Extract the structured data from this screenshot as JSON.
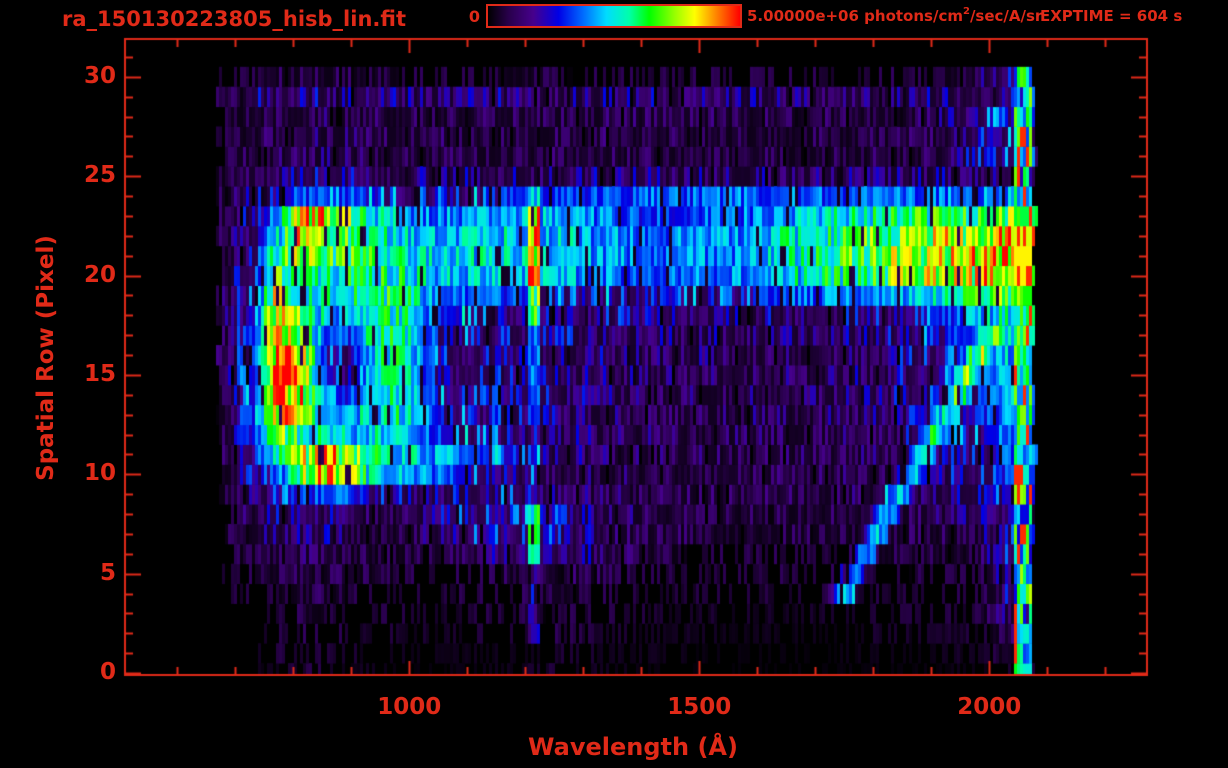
{
  "figure": {
    "title": "ra_150130223805_hisb_lin.fit",
    "exptime": "EXPTIME = 604 s",
    "accent_color": "#e02a18",
    "colorbar": {
      "min_label": "0",
      "max_label": "5.00000e+06",
      "units_prefix": " photons/cm",
      "units_exponent": "2",
      "units_suffix": "/sec/A/sr"
    }
  },
  "chart_data": {
    "type": "heatmap",
    "title": "ra_150130223805_hisb_lin.fit",
    "xlabel": "Wavelength (Å)",
    "ylabel": "Spatial Row (Pixel)",
    "xlim": [
      510,
      2272
    ],
    "ylim": [
      -0.1,
      31.9
    ],
    "x_ticks": [
      1000,
      1500,
      2000
    ],
    "x_minor_step": 100,
    "x_minor_range": [
      600,
      2200
    ],
    "y_ticks": [
      0,
      5,
      10,
      15,
      20,
      25,
      30
    ],
    "y_minor_step": 1,
    "y_minor_range": [
      0,
      31
    ],
    "exposure_seconds": 604,
    "colorbar_range": [
      0,
      5000000
    ],
    "value_unit": "photons/cm^2/sec/A/sr",
    "value_scale": 1000000,
    "data_extent": {
      "wavelength": [
        668,
        2075
      ],
      "rows": [
        0,
        30
      ]
    },
    "colormap_stops": [
      [
        0.0,
        "#000000"
      ],
      [
        0.08,
        "#28004a"
      ],
      [
        0.18,
        "#46008c"
      ],
      [
        0.28,
        "#0000e6"
      ],
      [
        0.38,
        "#006eff"
      ],
      [
        0.47,
        "#00dcff"
      ],
      [
        0.56,
        "#00ffaa"
      ],
      [
        0.64,
        "#00ff00"
      ],
      [
        0.74,
        "#96ff00"
      ],
      [
        0.82,
        "#ffff00"
      ],
      [
        0.9,
        "#ff8c00"
      ],
      [
        1.0,
        "#ff0000"
      ]
    ],
    "wavelength_bins": [
      680,
      730,
      770,
      810,
      850,
      890,
      930,
      980,
      1050,
      1150,
      1250,
      1400,
      1550,
      1700,
      1800,
      1900,
      1980,
      2040
    ],
    "grid_unit": "1e6 photons/cm^2/sec/A/sr",
    "grid_rows": [
      [
        0.05,
        0.1,
        0.1,
        0.25,
        0.25,
        0.1,
        0.1,
        0.05,
        0.05,
        0.1,
        0.2,
        0.05,
        0.05,
        0.05,
        0.05,
        0.05,
        0.1,
        0.3
      ],
      [
        0.1,
        0.15,
        0.2,
        0.25,
        0.25,
        0.2,
        0.15,
        0.1,
        0.1,
        0.1,
        0.2,
        0.1,
        0.05,
        0.05,
        0.1,
        0.1,
        0.15,
        0.5
      ],
      [
        0.1,
        0.2,
        0.25,
        0.3,
        0.3,
        0.25,
        0.2,
        0.2,
        0.15,
        0.2,
        0.3,
        0.15,
        0.1,
        0.1,
        0.15,
        0.15,
        0.2,
        0.7
      ],
      [
        0.15,
        0.25,
        0.3,
        0.35,
        0.35,
        0.3,
        0.25,
        0.25,
        0.2,
        0.25,
        0.3,
        0.2,
        0.15,
        0.15,
        0.2,
        0.2,
        0.25,
        0.8
      ],
      [
        0.2,
        0.3,
        0.35,
        0.4,
        0.4,
        0.35,
        0.3,
        0.3,
        0.25,
        0.3,
        0.4,
        0.25,
        0.2,
        0.25,
        0.25,
        0.25,
        0.3,
        1.0
      ],
      [
        0.25,
        0.35,
        0.4,
        0.45,
        0.45,
        0.4,
        0.35,
        0.35,
        0.3,
        0.35,
        0.5,
        0.3,
        0.25,
        0.3,
        0.3,
        0.3,
        0.35,
        1.2
      ],
      [
        0.3,
        0.4,
        0.5,
        0.55,
        0.55,
        0.45,
        0.4,
        0.4,
        0.45,
        0.8,
        1.0,
        0.4,
        0.3,
        0.3,
        0.35,
        0.35,
        0.4,
        1.4
      ],
      [
        0.35,
        0.5,
        0.8,
        0.8,
        0.8,
        0.6,
        0.5,
        0.5,
        0.8,
        1.3,
        1.2,
        0.5,
        0.4,
        0.4,
        0.4,
        0.45,
        0.5,
        1.5
      ],
      [
        0.35,
        0.6,
        0.85,
        0.9,
        0.9,
        0.7,
        0.6,
        0.6,
        0.9,
        1.4,
        1.3,
        0.5,
        0.4,
        0.45,
        0.5,
        0.6,
        0.8,
        1.5
      ],
      [
        0.4,
        0.8,
        1.2,
        1.6,
        1.8,
        1.7,
        1.5,
        1.1,
        1.0,
        1.2,
        0.8,
        0.5,
        0.5,
        0.5,
        0.55,
        0.7,
        1.0,
        1.6
      ],
      [
        0.45,
        1.0,
        1.8,
        3.2,
        4.4,
        3.7,
        2.7,
        2.2,
        2.0,
        1.0,
        0.7,
        0.5,
        0.5,
        0.55,
        0.6,
        0.8,
        1.2,
        1.8
      ],
      [
        0.5,
        1.4,
        2.6,
        3.6,
        4.6,
        3.8,
        3.0,
        2.5,
        2.2,
        1.4,
        0.8,
        0.6,
        0.5,
        0.55,
        0.65,
        0.9,
        1.3,
        1.8
      ],
      [
        0.5,
        1.7,
        3.4,
        3.0,
        2.6,
        2.4,
        2.6,
        2.6,
        1.6,
        1.2,
        0.8,
        0.6,
        0.55,
        0.6,
        0.7,
        1.0,
        1.4,
        2.0
      ],
      [
        0.55,
        1.8,
        4.6,
        3.6,
        2.4,
        2.2,
        2.5,
        2.7,
        1.5,
        1.1,
        0.8,
        0.65,
        0.6,
        0.6,
        0.75,
        1.0,
        1.5,
        2.2
      ],
      [
        0.55,
        1.7,
        5.0,
        4.4,
        2.2,
        1.6,
        2.4,
        2.7,
        1.4,
        1.0,
        0.9,
        0.7,
        0.6,
        0.65,
        0.8,
        1.1,
        1.5,
        2.2
      ],
      [
        0.55,
        1.7,
        5.0,
        4.3,
        1.8,
        1.1,
        2.4,
        2.8,
        1.3,
        1.0,
        0.9,
        0.7,
        0.6,
        0.65,
        0.8,
        1.1,
        1.6,
        2.3
      ],
      [
        0.55,
        1.7,
        5.0,
        4.2,
        1.6,
        1.1,
        2.5,
        2.9,
        1.3,
        1.0,
        0.9,
        0.7,
        0.65,
        0.7,
        0.85,
        1.2,
        1.8,
        2.4
      ],
      [
        0.55,
        1.7,
        4.9,
        3.8,
        1.8,
        1.6,
        2.6,
        3.0,
        1.4,
        1.1,
        1.0,
        0.75,
        0.7,
        0.75,
        0.9,
        1.3,
        2.0,
        2.5
      ],
      [
        0.55,
        1.6,
        4.4,
        3.3,
        2.4,
        2.2,
        2.7,
        3.0,
        1.6,
        1.3,
        1.2,
        0.9,
        0.8,
        0.9,
        1.1,
        1.5,
        2.2,
        2.8
      ],
      [
        0.55,
        1.5,
        4.0,
        2.9,
        2.7,
        2.6,
        2.9,
        3.0,
        2.0,
        1.8,
        1.4,
        1.3,
        1.3,
        1.9,
        2.2,
        2.6,
        3.0,
        3.6
      ],
      [
        0.55,
        1.4,
        3.4,
        2.7,
        2.7,
        2.9,
        3.0,
        2.8,
        2.4,
        2.4,
        2.4,
        1.8,
        2.0,
        2.7,
        3.2,
        3.7,
        4.1,
        4.6
      ],
      [
        0.5,
        1.3,
        3.0,
        3.8,
        3.3,
        3.2,
        3.0,
        2.6,
        2.3,
        2.5,
        2.5,
        1.9,
        2.1,
        2.9,
        3.4,
        3.8,
        4.2,
        4.6
      ],
      [
        0.5,
        1.2,
        2.4,
        4.2,
        3.8,
        3.4,
        2.8,
        2.5,
        2.2,
        2.4,
        2.4,
        1.9,
        2.1,
        2.8,
        3.3,
        3.7,
        4.1,
        4.4
      ],
      [
        0.45,
        1.1,
        2.0,
        4.4,
        4.4,
        3.6,
        2.5,
        2.3,
        2.0,
        2.2,
        2.3,
        1.7,
        1.8,
        2.4,
        2.9,
        3.1,
        3.2,
        3.4
      ],
      [
        0.4,
        0.9,
        1.3,
        1.7,
        2.1,
        1.8,
        1.5,
        1.3,
        1.2,
        1.5,
        1.6,
        1.8,
        1.9,
        1.9,
        1.8,
        1.9,
        2.0,
        2.1
      ],
      [
        0.4,
        0.8,
        0.9,
        1.0,
        1.0,
        0.9,
        0.85,
        0.8,
        0.75,
        0.8,
        0.8,
        0.75,
        0.7,
        0.7,
        0.7,
        0.75,
        0.8,
        1.2
      ],
      [
        0.3,
        0.5,
        0.55,
        0.6,
        0.6,
        0.55,
        0.5,
        0.5,
        0.5,
        0.5,
        0.5,
        0.5,
        0.45,
        0.45,
        0.45,
        0.5,
        1.0,
        1.4
      ],
      [
        0.3,
        0.5,
        0.5,
        0.55,
        0.6,
        0.55,
        0.5,
        0.5,
        0.5,
        0.5,
        0.5,
        0.5,
        0.45,
        0.45,
        0.45,
        0.5,
        1.0,
        1.4
      ],
      [
        0.3,
        0.5,
        0.55,
        0.6,
        0.6,
        0.55,
        0.5,
        0.5,
        0.5,
        0.55,
        0.5,
        0.5,
        0.5,
        0.45,
        0.5,
        0.55,
        1.1,
        1.5
      ],
      [
        0.4,
        0.8,
        0.9,
        0.9,
        0.9,
        0.9,
        0.85,
        0.8,
        0.8,
        0.8,
        0.8,
        0.8,
        0.75,
        0.7,
        0.75,
        0.8,
        0.9,
        1.3
      ],
      [
        0.25,
        0.35,
        0.4,
        0.4,
        0.4,
        0.4,
        0.35,
        0.35,
        0.3,
        0.35,
        0.35,
        0.3,
        0.3,
        0.3,
        0.3,
        0.35,
        0.6,
        1.5
      ]
    ],
    "features": {
      "lyman_alpha_line": {
        "wavelength": 1212,
        "half_width": 11,
        "row_boost": [
          [
            2,
            5,
            0.5
          ],
          [
            6,
            8,
            1.6
          ],
          [
            9,
            12,
            0.5
          ],
          [
            13,
            17,
            0.9
          ],
          [
            18,
            23,
            1.8
          ],
          [
            24,
            24,
            0.8
          ]
        ]
      },
      "diagonal_streak": {
        "row_start": 4,
        "row_end": 17,
        "wavelength_at_row_start": 1745,
        "wavelength_per_row": 19.6,
        "half_width": 25,
        "intensity": 1.9
      },
      "right_edge_stripe": {
        "wavelength": [
          2042,
          2072
        ],
        "intensity_range": [
          0.8,
          4.8
        ]
      }
    }
  }
}
